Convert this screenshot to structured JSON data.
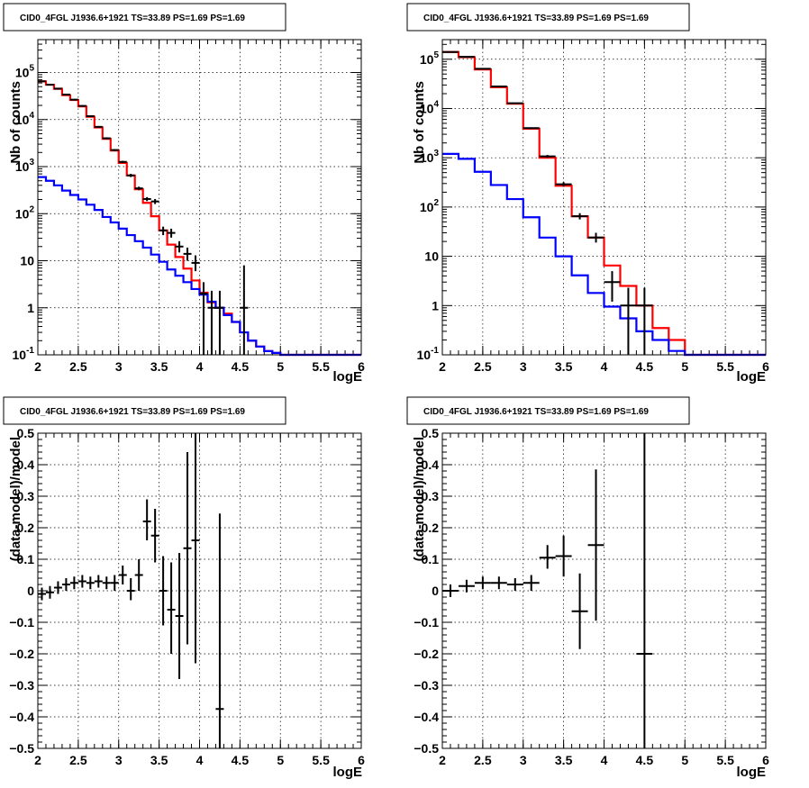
{
  "chart_data": [
    {
      "type": "histogram",
      "title": "CID0_4FGL J1936.6+1921 TS=33.89 PS=1.69 PS=1.69",
      "xlabel": "logE",
      "ylabel": "Nb of counts",
      "xlim": [
        2,
        6
      ],
      "ylim": [
        0.1,
        500000
      ],
      "yscale": "log",
      "grid": true,
      "x_ticks": [
        "2",
        "2.5",
        "3",
        "3.5",
        "4",
        "4.5",
        "5",
        "5.5",
        "6"
      ],
      "y_ticks": [
        {
          "v": 0.1,
          "base": "10",
          "exp": "-1"
        },
        {
          "v": 1,
          "text": "1"
        },
        {
          "v": 10,
          "text": "10"
        },
        {
          "v": 100,
          "base": "10",
          "exp": "2"
        },
        {
          "v": 1000,
          "base": "10",
          "exp": "3"
        },
        {
          "v": 10000,
          "base": "10",
          "exp": "4"
        },
        {
          "v": 100000,
          "base": "10",
          "exp": "5"
        }
      ],
      "bin_edges": [
        2.0,
        2.1,
        2.2,
        2.3,
        2.4,
        2.5,
        2.6,
        2.7,
        2.8,
        2.9,
        3.0,
        3.1,
        3.2,
        3.3,
        3.4,
        3.5,
        3.6,
        3.7,
        3.8,
        3.9,
        4.0,
        4.1,
        4.2,
        4.3,
        4.4,
        4.5,
        4.6,
        4.7,
        4.8,
        4.9,
        5.0,
        5.1,
        5.2,
        5.3,
        5.4,
        5.5,
        5.6,
        5.7,
        5.8,
        5.9,
        6.0
      ],
      "series": [
        {
          "color": "#ff0000",
          "style": "step",
          "values": [
            65000,
            55000,
            45000,
            33000,
            26000,
            19000,
            11500,
            6800,
            3900,
            2200,
            1200,
            650,
            330,
            170,
            88,
            44,
            22,
            12,
            6.8,
            3.8,
            2.1,
            1.3,
            1.0,
            0.75,
            0.5,
            0.3,
            0.2,
            0.15,
            0.12,
            0.11,
            0.1,
            0.1,
            0.1,
            0.1,
            0.1,
            0.1,
            0.1,
            0.1,
            0.1,
            0.1
          ]
        },
        {
          "color": "#0000ff",
          "style": "step",
          "values": [
            600,
            500,
            400,
            310,
            250,
            200,
            155,
            120,
            85,
            65,
            48,
            35,
            26,
            19,
            13.5,
            9.5,
            6.5,
            4.8,
            3.5,
            2.5,
            1.9,
            1.35,
            1.0,
            0.7,
            0.5,
            0.3,
            0.2,
            0.15,
            0.12,
            0.11,
            0.1,
            0.1,
            0.1,
            0.1,
            0.1,
            0.1,
            0.1,
            0.1,
            0.1,
            0.1
          ]
        },
        {
          "color": "#000000",
          "style": "points",
          "points": [
            {
              "x": 2.05,
              "y": 65000,
              "lo": 63000,
              "hi": 67000
            },
            {
              "x": 2.15,
              "y": 55000,
              "lo": 53500,
              "hi": 56500
            },
            {
              "x": 2.25,
              "y": 45500,
              "lo": 44000,
              "hi": 47000
            },
            {
              "x": 2.35,
              "y": 34000,
              "lo": 33000,
              "hi": 35000
            },
            {
              "x": 2.45,
              "y": 26500,
              "lo": 25500,
              "hi": 27500
            },
            {
              "x": 2.55,
              "y": 19500,
              "lo": 18800,
              "hi": 20200
            },
            {
              "x": 2.65,
              "y": 11800,
              "lo": 11300,
              "hi": 12300
            },
            {
              "x": 2.75,
              "y": 7000,
              "lo": 6700,
              "hi": 7300
            },
            {
              "x": 2.85,
              "y": 4000,
              "lo": 3800,
              "hi": 4200
            },
            {
              "x": 2.95,
              "y": 2250,
              "lo": 2150,
              "hi": 2350
            },
            {
              "x": 3.05,
              "y": 1260,
              "lo": 1190,
              "hi": 1330
            },
            {
              "x": 3.15,
              "y": 650,
              "lo": 600,
              "hi": 700
            },
            {
              "x": 3.25,
              "y": 345,
              "lo": 315,
              "hi": 375
            },
            {
              "x": 3.35,
              "y": 205,
              "lo": 185,
              "hi": 225
            },
            {
              "x": 3.45,
              "y": 182,
              "lo": 160,
              "hi": 205
            },
            {
              "x": 3.55,
              "y": 44,
              "lo": 35,
              "hi": 53
            },
            {
              "x": 3.65,
              "y": 39,
              "lo": 31,
              "hi": 48
            },
            {
              "x": 3.75,
              "y": 20,
              "lo": 15,
              "hi": 26
            },
            {
              "x": 3.85,
              "y": 14,
              "lo": 10,
              "hi": 19
            },
            {
              "x": 3.95,
              "y": 9,
              "lo": 6,
              "hi": 13
            },
            {
              "x": 4.05,
              "y": 2,
              "lo": 0.1,
              "hi": 3.5
            },
            {
              "x": 4.15,
              "y": 1,
              "lo": 0.1,
              "hi": 2.3
            },
            {
              "x": 4.25,
              "y": 1,
              "lo": 0.1,
              "hi": 2.3
            },
            {
              "x": 4.55,
              "y": 1,
              "lo": 0.1,
              "hi": 8
            }
          ]
        }
      ]
    },
    {
      "type": "histogram",
      "title": "CID0_4FGL J1936.6+1921 TS=33.89 PS=1.69 PS=1.69",
      "xlabel": "logE",
      "ylabel": "Nb of counts",
      "xlim": [
        2,
        6
      ],
      "ylim": [
        0.1,
        250000
      ],
      "yscale": "log",
      "grid": true,
      "x_ticks": [
        "2",
        "2.5",
        "3",
        "3.5",
        "4",
        "4.5",
        "5",
        "5.5",
        "6"
      ],
      "y_ticks": [
        {
          "v": 0.1,
          "base": "10",
          "exp": "-1"
        },
        {
          "v": 1,
          "text": "1"
        },
        {
          "v": 10,
          "text": "10"
        },
        {
          "v": 100,
          "base": "10",
          "exp": "2"
        },
        {
          "v": 1000,
          "base": "10",
          "exp": "3"
        },
        {
          "v": 10000,
          "base": "10",
          "exp": "4"
        },
        {
          "v": 100000,
          "base": "10",
          "exp": "5"
        }
      ],
      "bin_edges": [
        2.0,
        2.2,
        2.4,
        2.6,
        2.8,
        3.0,
        3.2,
        3.4,
        3.6,
        3.8,
        4.0,
        4.2,
        4.4,
        4.6,
        4.8,
        5.0,
        5.2,
        5.4,
        5.6,
        5.8,
        6.0
      ],
      "series": [
        {
          "color": "#ff0000",
          "style": "step",
          "values": [
            140000,
            110000,
            62000,
            27000,
            12500,
            3900,
            1000,
            270,
            65,
            24,
            6.5,
            2.5,
            1.0,
            0.35,
            0.2,
            0.1,
            0.1,
            0.1,
            0.1,
            0.1
          ]
        },
        {
          "color": "#0000ff",
          "style": "step",
          "values": [
            1200,
            950,
            520,
            280,
            145,
            62,
            24,
            10,
            4.1,
            1.8,
            0.95,
            0.55,
            0.3,
            0.2,
            0.12,
            0.1,
            0.1,
            0.1,
            0.1,
            0.1
          ]
        },
        {
          "color": "#000000",
          "style": "points",
          "points": [
            {
              "x": 2.1,
              "y": 140000,
              "lo": 138000,
              "hi": 142000
            },
            {
              "x": 2.3,
              "y": 112000,
              "lo": 110000,
              "hi": 114000
            },
            {
              "x": 2.5,
              "y": 64000,
              "lo": 63000,
              "hi": 65000
            },
            {
              "x": 2.7,
              "y": 28000,
              "lo": 27500,
              "hi": 28500
            },
            {
              "x": 2.9,
              "y": 12800,
              "lo": 12500,
              "hi": 13100
            },
            {
              "x": 3.1,
              "y": 4000,
              "lo": 3850,
              "hi": 4150
            },
            {
              "x": 3.3,
              "y": 1070,
              "lo": 1000,
              "hi": 1140
            },
            {
              "x": 3.5,
              "y": 290,
              "lo": 260,
              "hi": 320
            },
            {
              "x": 3.7,
              "y": 65,
              "lo": 56,
              "hi": 75
            },
            {
              "x": 3.9,
              "y": 24,
              "lo": 19,
              "hi": 30
            },
            {
              "x": 4.1,
              "y": 3,
              "lo": 1.2,
              "hi": 5
            },
            {
              "x": 4.3,
              "y": 1,
              "lo": 0.1,
              "hi": 2.3
            },
            {
              "x": 4.5,
              "y": 1,
              "lo": 0.1,
              "hi": 2.3
            }
          ]
        }
      ]
    },
    {
      "type": "scatter",
      "title": "CID0_4FGL J1936.6+1921 TS=33.89 PS=1.69 PS=1.69",
      "xlabel": "logE",
      "ylabel": "(data-model)/model",
      "xlim": [
        2,
        6
      ],
      "ylim": [
        -0.5,
        0.5
      ],
      "yscale": "linear",
      "grid": true,
      "x_ticks": [
        "2",
        "2.5",
        "3",
        "3.5",
        "4",
        "4.5",
        "5",
        "5.5",
        "6"
      ],
      "y_ticks": [
        "−0.5",
        "−0.4",
        "−0.3",
        "−0.2",
        "−0.1",
        "0",
        "0.1",
        "0.2",
        "0.3",
        "0.4",
        "0.5"
      ],
      "y_tick_values": [
        -0.5,
        -0.4,
        -0.3,
        -0.2,
        -0.1,
        0,
        0.1,
        0.2,
        0.3,
        0.4,
        0.5
      ],
      "x_halfwidth": 0.05,
      "series": [
        {
          "color": "#000000",
          "style": "points",
          "points": [
            {
              "x": 2.05,
              "y": -0.01,
              "lo": -0.03,
              "hi": 0.01
            },
            {
              "x": 2.15,
              "y": -0.005,
              "lo": -0.025,
              "hi": 0.015
            },
            {
              "x": 2.25,
              "y": 0.01,
              "lo": -0.01,
              "hi": 0.03
            },
            {
              "x": 2.35,
              "y": 0.02,
              "lo": 0.0,
              "hi": 0.04
            },
            {
              "x": 2.45,
              "y": 0.025,
              "lo": 0.005,
              "hi": 0.045
            },
            {
              "x": 2.55,
              "y": 0.03,
              "lo": 0.01,
              "hi": 0.05
            },
            {
              "x": 2.65,
              "y": 0.025,
              "lo": 0.005,
              "hi": 0.045
            },
            {
              "x": 2.75,
              "y": 0.03,
              "lo": 0.01,
              "hi": 0.05
            },
            {
              "x": 2.85,
              "y": 0.025,
              "lo": 0.005,
              "hi": 0.045
            },
            {
              "x": 2.95,
              "y": 0.025,
              "lo": 0.0,
              "hi": 0.05
            },
            {
              "x": 3.05,
              "y": 0.05,
              "lo": 0.02,
              "hi": 0.08
            },
            {
              "x": 3.15,
              "y": 0.0,
              "lo": -0.03,
              "hi": 0.04
            },
            {
              "x": 3.25,
              "y": 0.05,
              "lo": 0.0,
              "hi": 0.1
            },
            {
              "x": 3.35,
              "y": 0.22,
              "lo": 0.16,
              "hi": 0.29
            },
            {
              "x": 3.45,
              "y": 0.175,
              "lo": 0.09,
              "hi": 0.26
            },
            {
              "x": 3.55,
              "y": 0.0,
              "lo": -0.11,
              "hi": 0.11
            },
            {
              "x": 3.65,
              "y": -0.06,
              "lo": -0.2,
              "hi": 0.09
            },
            {
              "x": 3.75,
              "y": -0.08,
              "lo": -0.28,
              "hi": 0.12
            },
            {
              "x": 3.85,
              "y": 0.135,
              "lo": -0.17,
              "hi": 0.44
            },
            {
              "x": 3.95,
              "y": 0.16,
              "lo": -0.23,
              "hi": 0.5
            },
            {
              "x": 4.25,
              "y": -0.375,
              "lo": -0.5,
              "hi": 0.245
            }
          ]
        }
      ]
    },
    {
      "type": "scatter",
      "title": "CID0_4FGL J1936.6+1921 TS=33.89 PS=1.69 PS=1.69",
      "xlabel": "logE",
      "ylabel": "(data-model)/model",
      "xlim": [
        2,
        6
      ],
      "ylim": [
        -0.5,
        0.5
      ],
      "yscale": "linear",
      "grid": true,
      "x_ticks": [
        "2",
        "2.5",
        "3",
        "3.5",
        "4",
        "4.5",
        "5",
        "5.5",
        "6"
      ],
      "y_ticks": [
        "−0.5",
        "−0.4",
        "−0.3",
        "−0.2",
        "−0.1",
        "0",
        "0.1",
        "0.2",
        "0.3",
        "0.4",
        "0.5"
      ],
      "y_tick_values": [
        -0.5,
        -0.4,
        -0.3,
        -0.2,
        -0.1,
        0,
        0.1,
        0.2,
        0.3,
        0.4,
        0.5
      ],
      "x_halfwidth": 0.1,
      "series": [
        {
          "color": "#000000",
          "style": "points",
          "points": [
            {
              "x": 2.1,
              "y": 0.0,
              "lo": -0.02,
              "hi": 0.02
            },
            {
              "x": 2.3,
              "y": 0.015,
              "lo": -0.005,
              "hi": 0.035
            },
            {
              "x": 2.5,
              "y": 0.025,
              "lo": 0.005,
              "hi": 0.045
            },
            {
              "x": 2.7,
              "y": 0.025,
              "lo": 0.005,
              "hi": 0.045
            },
            {
              "x": 2.9,
              "y": 0.02,
              "lo": 0.0,
              "hi": 0.04
            },
            {
              "x": 3.1,
              "y": 0.025,
              "lo": 0.0,
              "hi": 0.05
            },
            {
              "x": 3.3,
              "y": 0.105,
              "lo": 0.07,
              "hi": 0.145
            },
            {
              "x": 3.5,
              "y": 0.11,
              "lo": 0.045,
              "hi": 0.175
            },
            {
              "x": 3.7,
              "y": -0.065,
              "lo": -0.185,
              "hi": 0.055
            },
            {
              "x": 3.9,
              "y": 0.145,
              "lo": -0.095,
              "hi": 0.385
            },
            {
              "x": 4.5,
              "y": -0.2,
              "lo": -0.5,
              "hi": 0.5
            }
          ]
        }
      ]
    }
  ]
}
